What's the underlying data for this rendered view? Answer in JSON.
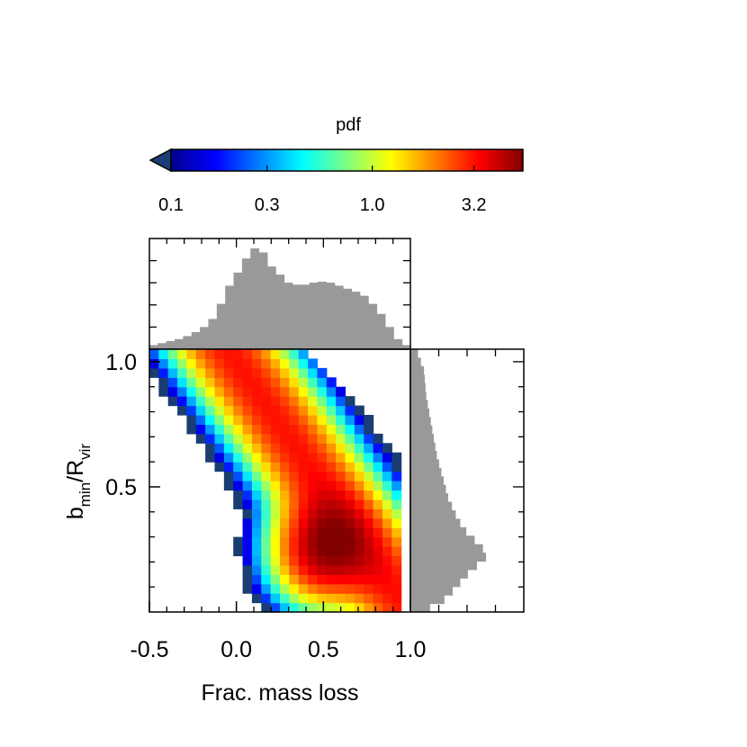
{
  "chart_data": {
    "type": "heatmap",
    "colorbar": {
      "title": "pdf",
      "scale": "log",
      "ticks": [
        "0.1",
        "0.3",
        "1.0",
        "3.2"
      ],
      "tick_values": [
        0.1,
        0.3,
        1.0,
        3.2
      ],
      "range": [
        0.1,
        5.6
      ],
      "colormap": "jet",
      "under_color": "#1a3d73",
      "extend": "min"
    },
    "main": {
      "xlabel": "Frac. mass loss",
      "ylabel_main": "b",
      "ylabel_sub1": "min",
      "ylabel_sep": "/R",
      "ylabel_sub2": "vir",
      "xlim": [
        -0.5,
        1.0
      ],
      "ylim": [
        0.0,
        1.05
      ],
      "xticks": [
        "-0.5",
        "0.0",
        "0.5",
        "1.0"
      ],
      "xtick_values": [
        -0.5,
        0.0,
        0.5,
        1.0
      ],
      "yticks": [
        "0.5",
        "1.0"
      ],
      "ytick_values": [
        0.5,
        1.0
      ],
      "grid": "28x28 bins",
      "density_model": {
        "components": [
          {
            "x0": 0.0,
            "y0": 1.0,
            "slope": -1.0,
            "sigma_perp": 0.13,
            "weight": 3.0
          },
          {
            "x0": 0.5,
            "y0": 0.25,
            "sigma_x": 0.16,
            "sigma_y": 0.12,
            "weight": 4.4
          }
        ],
        "background": 0.1
      }
    },
    "top_histogram": {
      "variable": "Frac. mass loss",
      "color": "#999999",
      "bins": 31,
      "x_start": -0.5,
      "x_end": 1.0,
      "values": [
        0.04,
        0.06,
        0.08,
        0.1,
        0.13,
        0.17,
        0.22,
        0.3,
        0.45,
        0.63,
        0.76,
        0.9,
        1.0,
        0.96,
        0.82,
        0.74,
        0.66,
        0.64,
        0.64,
        0.66,
        0.67,
        0.66,
        0.63,
        0.6,
        0.57,
        0.53,
        0.45,
        0.35,
        0.22,
        0.1,
        0.04
      ]
    },
    "right_histogram": {
      "variable": "b_min/R_vir",
      "color": "#999999",
      "bins": 31,
      "y_start": 0.0,
      "y_end": 1.05,
      "values": [
        0.26,
        0.45,
        0.56,
        0.66,
        0.76,
        0.88,
        1.0,
        0.96,
        0.85,
        0.74,
        0.66,
        0.6,
        0.55,
        0.5,
        0.47,
        0.44,
        0.41,
        0.38,
        0.35,
        0.33,
        0.31,
        0.29,
        0.27,
        0.25,
        0.23,
        0.21,
        0.2,
        0.19,
        0.18,
        0.14,
        0.1
      ]
    }
  }
}
